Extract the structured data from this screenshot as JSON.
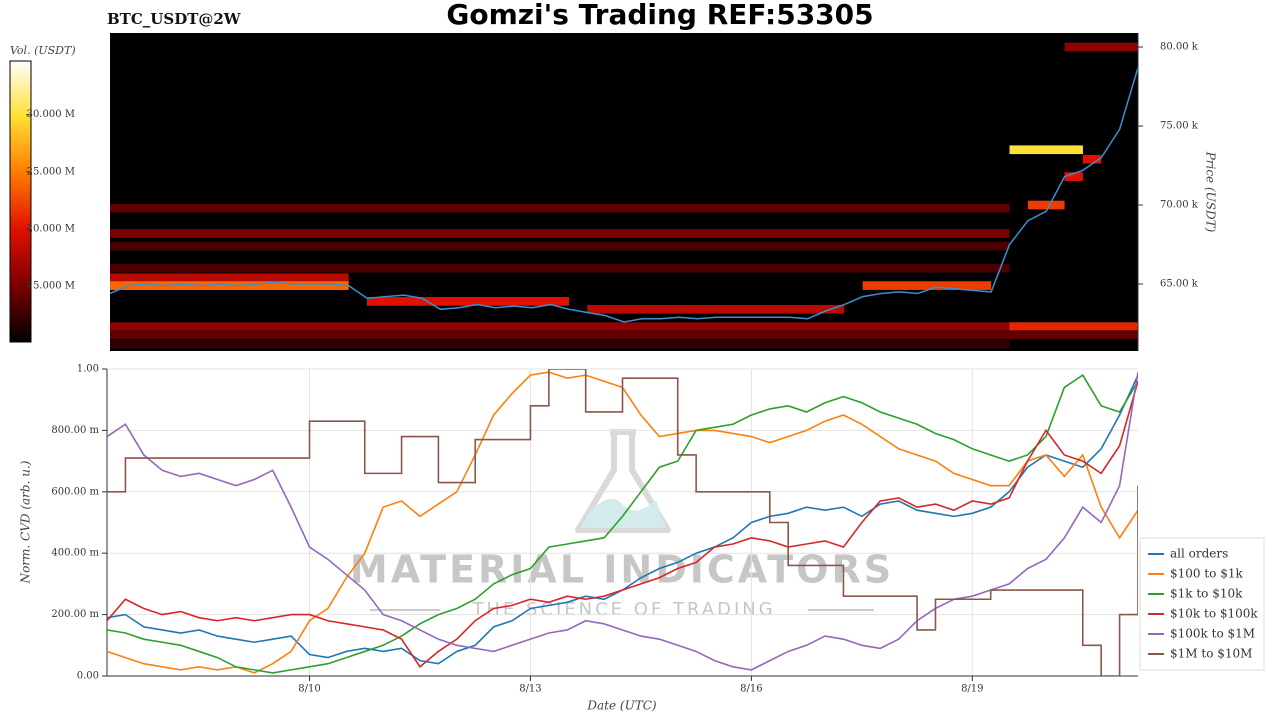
{
  "chart_data": [
    {
      "type": "heatmap",
      "title": "Gomzi's Trading REF:53305",
      "subtitle": "BTC_USDT@2W",
      "colorbar_label": "Vol. (USDT)",
      "clim": [
        10.1,
        34.7
      ],
      "cticks": [
        {
          "value": 15,
          "label": "15.000 M"
        },
        {
          "value": 20,
          "label": "20.000 M"
        },
        {
          "value": 25,
          "label": "25.000 M"
        },
        {
          "value": 30,
          "label": "30.000 M"
        }
      ],
      "colormap": [
        "#000000",
        "#7a0000",
        "#e01000",
        "#ff7a00",
        "#ffe030",
        "#ffffff"
      ],
      "y_label": "Price (USDT)",
      "ylim": [
        60.76,
        80.89
      ],
      "yticks": [
        {
          "value": 65,
          "label": "65.00 k"
        },
        {
          "value": 70,
          "label": "70.00 k"
        },
        {
          "value": 75,
          "label": "75.00 k"
        },
        {
          "value": 80,
          "label": "80.00 k"
        }
      ],
      "cells": [
        {
          "price": 69.8,
          "start": 0,
          "end": 49,
          "volume": 14
        },
        {
          "price": 68.2,
          "start": 0,
          "end": 49,
          "volume": 15
        },
        {
          "price": 67.4,
          "start": 0,
          "end": 49,
          "volume": 13
        },
        {
          "price": 66.0,
          "start": 0,
          "end": 49,
          "volume": 13
        },
        {
          "price": 65.4,
          "start": 0,
          "end": 13,
          "volume": 18
        },
        {
          "price": 64.9,
          "start": 0,
          "end": 13,
          "volume": 24
        },
        {
          "price": 64.9,
          "start": 41,
          "end": 48,
          "volume": 22
        },
        {
          "price": 63.9,
          "start": 14,
          "end": 25,
          "volume": 20
        },
        {
          "price": 63.4,
          "start": 26,
          "end": 40,
          "volume": 18
        },
        {
          "price": 62.3,
          "start": 0,
          "end": 49,
          "volume": 16
        },
        {
          "price": 62.3,
          "start": 49,
          "end": 56,
          "volume": 21
        },
        {
          "price": 61.8,
          "start": 0,
          "end": 56,
          "volume": 14
        },
        {
          "price": 61.2,
          "start": 0,
          "end": 49,
          "volume": 12
        },
        {
          "price": 73.5,
          "start": 49,
          "end": 53,
          "volume": 30
        },
        {
          "price": 72.9,
          "start": 53,
          "end": 54,
          "volume": 20
        },
        {
          "price": 71.8,
          "start": 52,
          "end": 53,
          "volume": 20
        },
        {
          "price": 70.0,
          "start": 50,
          "end": 52,
          "volume": 22
        },
        {
          "price": 80.0,
          "start": 52,
          "end": 56,
          "volume": 16
        }
      ],
      "price_line": {
        "color": "#3a8fd0",
        "values": [
          64.4,
          64.9,
          65.0,
          64.9,
          65.0,
          64.9,
          65.0,
          64.9,
          65.0,
          65.1,
          65.0,
          65.0,
          65.0,
          64.9,
          64.1,
          64.2,
          64.3,
          64.1,
          63.4,
          63.5,
          63.7,
          63.5,
          63.6,
          63.5,
          63.7,
          63.4,
          63.2,
          63.0,
          62.6,
          62.8,
          62.8,
          62.9,
          62.8,
          62.9,
          62.9,
          62.9,
          62.9,
          62.9,
          62.8,
          63.3,
          63.7,
          64.2,
          64.4,
          64.5,
          64.4,
          64.8,
          64.7,
          64.6,
          64.5,
          67.5,
          69.0,
          69.6,
          71.8,
          72.2,
          73.0,
          74.8,
          78.7
        ]
      }
    },
    {
      "type": "line",
      "y_label": "Norm. CVD (arb. u.)",
      "x_label": "Date (UTC)",
      "categories": [
        null,
        null,
        null,
        null,
        null,
        null,
        null,
        null,
        null,
        null,
        null,
        "8/10",
        null,
        null,
        null,
        null,
        null,
        null,
        null,
        null,
        null,
        null,
        null,
        "8/13",
        null,
        null,
        null,
        null,
        null,
        null,
        null,
        null,
        null,
        null,
        null,
        "8/16",
        null,
        null,
        null,
        null,
        null,
        null,
        null,
        null,
        null,
        null,
        null,
        "8/19",
        null,
        null,
        null,
        null,
        null,
        null,
        null,
        null,
        null
      ],
      "ylim": [
        0,
        1
      ],
      "yticks": [
        {
          "value": 0,
          "label": "0.00"
        },
        {
          "value": 0.2,
          "label": "200.00 m"
        },
        {
          "value": 0.4,
          "label": "400.00 m"
        },
        {
          "value": 0.6,
          "label": "600.00 m"
        },
        {
          "value": 0.8,
          "label": "800.00 m"
        },
        {
          "value": 1,
          "label": "1.00"
        }
      ],
      "grid": true,
      "legend": "lower right",
      "watermark": [
        "MATERIAL INDICATORS",
        "THE SCIENCE OF TRADING"
      ],
      "series": [
        {
          "name": "all orders",
          "color": "#1f77b4",
          "values": [
            0.19,
            0.2,
            0.16,
            0.15,
            0.14,
            0.15,
            0.13,
            0.12,
            0.11,
            0.12,
            0.13,
            0.07,
            0.06,
            0.08,
            0.09,
            0.08,
            0.09,
            0.05,
            0.04,
            0.08,
            0.1,
            0.16,
            0.18,
            0.22,
            0.23,
            0.24,
            0.26,
            0.25,
            0.28,
            0.32,
            0.35,
            0.37,
            0.4,
            0.42,
            0.45,
            0.5,
            0.52,
            0.53,
            0.55,
            0.54,
            0.55,
            0.52,
            0.56,
            0.57,
            0.54,
            0.53,
            0.52,
            0.53,
            0.55,
            0.6,
            0.68,
            0.72,
            0.7,
            0.68,
            0.74,
            0.85,
            0.98
          ]
        },
        {
          "name": "$100 to $1k",
          "color": "#ff7f0e",
          "values": [
            0.08,
            0.06,
            0.04,
            0.03,
            0.02,
            0.03,
            0.02,
            0.03,
            0.01,
            0.04,
            0.08,
            0.18,
            0.22,
            0.32,
            0.4,
            0.55,
            0.57,
            0.52,
            0.56,
            0.6,
            0.72,
            0.85,
            0.92,
            0.98,
            0.99,
            0.97,
            0.98,
            0.96,
            0.94,
            0.85,
            0.78,
            0.79,
            0.8,
            0.8,
            0.79,
            0.78,
            0.76,
            0.78,
            0.8,
            0.83,
            0.85,
            0.82,
            0.78,
            0.74,
            0.72,
            0.7,
            0.66,
            0.64,
            0.62,
            0.62,
            0.7,
            0.72,
            0.65,
            0.72,
            0.55,
            0.45,
            0.54
          ]
        },
        {
          "name": "$1k to $10k",
          "color": "#2ca02c",
          "values": [
            0.15,
            0.14,
            0.12,
            0.11,
            0.1,
            0.08,
            0.06,
            0.03,
            0.02,
            0.01,
            0.02,
            0.03,
            0.04,
            0.06,
            0.08,
            0.1,
            0.13,
            0.17,
            0.2,
            0.22,
            0.25,
            0.3,
            0.33,
            0.35,
            0.42,
            0.43,
            0.44,
            0.45,
            0.52,
            0.6,
            0.68,
            0.7,
            0.8,
            0.81,
            0.82,
            0.85,
            0.87,
            0.88,
            0.86,
            0.89,
            0.91,
            0.89,
            0.86,
            0.84,
            0.82,
            0.79,
            0.77,
            0.74,
            0.72,
            0.7,
            0.72,
            0.78,
            0.94,
            0.98,
            0.88,
            0.86,
            0.96
          ]
        },
        {
          "name": "$10k to $100k",
          "color": "#d62728",
          "values": [
            0.18,
            0.25,
            0.22,
            0.2,
            0.21,
            0.19,
            0.18,
            0.19,
            0.18,
            0.19,
            0.2,
            0.2,
            0.18,
            0.17,
            0.16,
            0.15,
            0.12,
            0.03,
            0.08,
            0.12,
            0.18,
            0.22,
            0.23,
            0.25,
            0.24,
            0.26,
            0.25,
            0.26,
            0.28,
            0.3,
            0.32,
            0.35,
            0.37,
            0.42,
            0.43,
            0.45,
            0.44,
            0.42,
            0.43,
            0.44,
            0.42,
            0.5,
            0.57,
            0.58,
            0.55,
            0.56,
            0.54,
            0.57,
            0.56,
            0.58,
            0.7,
            0.8,
            0.72,
            0.7,
            0.66,
            0.75,
            0.96
          ]
        },
        {
          "name": "$100k to $1M",
          "color": "#9467bd",
          "values": [
            0.78,
            0.82,
            0.72,
            0.67,
            0.65,
            0.66,
            0.64,
            0.62,
            0.64,
            0.67,
            0.55,
            0.42,
            0.38,
            0.33,
            0.28,
            0.2,
            0.18,
            0.15,
            0.12,
            0.1,
            0.09,
            0.08,
            0.1,
            0.12,
            0.14,
            0.15,
            0.18,
            0.17,
            0.15,
            0.13,
            0.12,
            0.1,
            0.08,
            0.05,
            0.03,
            0.02,
            0.05,
            0.08,
            0.1,
            0.13,
            0.12,
            0.1,
            0.09,
            0.12,
            0.18,
            0.22,
            0.25,
            0.26,
            0.28,
            0.3,
            0.35,
            0.38,
            0.45,
            0.55,
            0.5,
            0.62,
            0.99
          ]
        },
        {
          "name": "$1M to $10M",
          "color": "#8c564b",
          "step": "post",
          "values": [
            0.6,
            0.71,
            0.71,
            0.71,
            0.71,
            0.71,
            0.71,
            0.71,
            0.71,
            0.71,
            0.71,
            0.83,
            0.83,
            0.83,
            0.66,
            0.66,
            0.78,
            0.78,
            0.63,
            0.63,
            0.77,
            0.77,
            0.77,
            0.88,
            1.0,
            1.0,
            0.86,
            0.86,
            0.97,
            0.97,
            0.97,
            0.72,
            0.6,
            0.6,
            0.6,
            0.6,
            0.5,
            0.36,
            0.36,
            0.36,
            0.26,
            0.26,
            0.26,
            0.26,
            0.15,
            0.25,
            0.25,
            0.25,
            0.28,
            0.28,
            0.28,
            0.28,
            0.28,
            0.1,
            0.0,
            0.2,
            0.62
          ]
        }
      ]
    }
  ]
}
